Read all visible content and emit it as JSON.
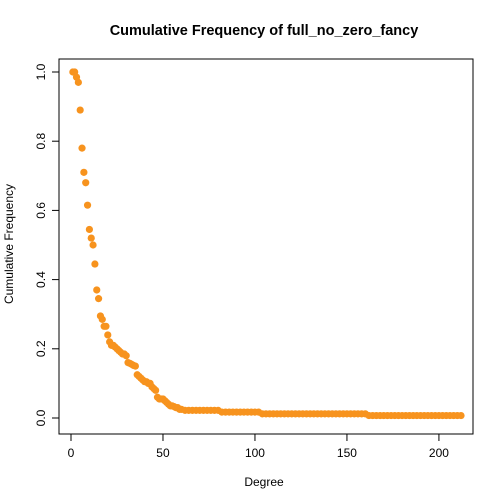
{
  "chart_data": {
    "type": "scatter",
    "title": "Cumulative Frequency of full_no_zero_fancy",
    "xlabel": "Degree",
    "ylabel": "Cumulative Frequency",
    "xlim": [
      0,
      212
    ],
    "ylim": [
      0,
      1
    ],
    "x_ticks": [
      0,
      50,
      100,
      150,
      200
    ],
    "x_tick_labels": [
      "0",
      "50",
      "100",
      "150",
      "200"
    ],
    "y_ticks": [
      0.0,
      0.2,
      0.4,
      0.6,
      0.8,
      1.0
    ],
    "y_tick_labels": [
      "0.0",
      "0.2",
      "0.4",
      "0.6",
      "0.8",
      "1.0"
    ],
    "grid": false,
    "legend": "none",
    "point_color": "#F7931E",
    "series": [
      {
        "x": [
          1,
          2,
          3,
          4,
          5,
          6,
          7,
          8,
          9,
          10,
          11,
          12,
          13,
          14,
          15,
          16,
          17,
          18,
          19,
          20,
          21,
          22,
          23,
          24,
          25,
          26,
          27,
          28,
          29,
          30,
          31,
          32,
          33,
          34,
          35,
          36,
          37,
          38,
          39,
          40,
          41,
          42,
          43,
          44,
          45,
          46,
          47,
          48,
          49,
          50,
          51,
          52,
          53,
          54,
          55,
          56,
          57,
          58,
          59,
          60,
          62,
          64,
          66,
          68,
          70,
          72,
          74,
          76,
          78,
          80,
          82,
          84,
          86,
          88,
          90,
          92,
          94,
          96,
          98,
          100,
          102,
          104,
          106,
          108,
          110,
          112,
          114,
          116,
          118,
          120,
          122,
          124,
          126,
          128,
          130,
          132,
          134,
          136,
          138,
          140,
          142,
          144,
          146,
          148,
          150,
          152,
          154,
          156,
          158,
          160,
          162,
          164,
          166,
          168,
          170,
          172,
          174,
          176,
          178,
          180,
          182,
          184,
          186,
          188,
          190,
          192,
          194,
          196,
          198,
          200,
          202,
          204,
          206,
          208,
          210,
          212
        ],
        "y": [
          1.0,
          1.0,
          0.985,
          0.97,
          0.89,
          0.78,
          0.71,
          0.68,
          0.615,
          0.545,
          0.52,
          0.5,
          0.445,
          0.37,
          0.345,
          0.295,
          0.285,
          0.265,
          0.265,
          0.24,
          0.22,
          0.21,
          0.21,
          0.205,
          0.2,
          0.195,
          0.19,
          0.185,
          0.185,
          0.18,
          0.16,
          0.158,
          0.155,
          0.152,
          0.15,
          0.125,
          0.12,
          0.115,
          0.11,
          0.105,
          0.105,
          0.1,
          0.1,
          0.09,
          0.085,
          0.08,
          0.06,
          0.055,
          0.055,
          0.055,
          0.05,
          0.045,
          0.04,
          0.035,
          0.035,
          0.033,
          0.03,
          0.03,
          0.025,
          0.025,
          0.022,
          0.022,
          0.022,
          0.022,
          0.022,
          0.022,
          0.022,
          0.022,
          0.022,
          0.022,
          0.017,
          0.017,
          0.017,
          0.017,
          0.017,
          0.017,
          0.017,
          0.017,
          0.017,
          0.017,
          0.017,
          0.012,
          0.012,
          0.012,
          0.012,
          0.012,
          0.012,
          0.012,
          0.012,
          0.012,
          0.012,
          0.012,
          0.012,
          0.012,
          0.012,
          0.012,
          0.012,
          0.012,
          0.012,
          0.012,
          0.012,
          0.012,
          0.012,
          0.012,
          0.012,
          0.012,
          0.012,
          0.012,
          0.012,
          0.012,
          0.007,
          0.007,
          0.007,
          0.007,
          0.007,
          0.007,
          0.007,
          0.007,
          0.007,
          0.007,
          0.007,
          0.007,
          0.007,
          0.007,
          0.007,
          0.007,
          0.007,
          0.007,
          0.007,
          0.007,
          0.007,
          0.007,
          0.007,
          0.007,
          0.007,
          0.007
        ]
      }
    ]
  }
}
